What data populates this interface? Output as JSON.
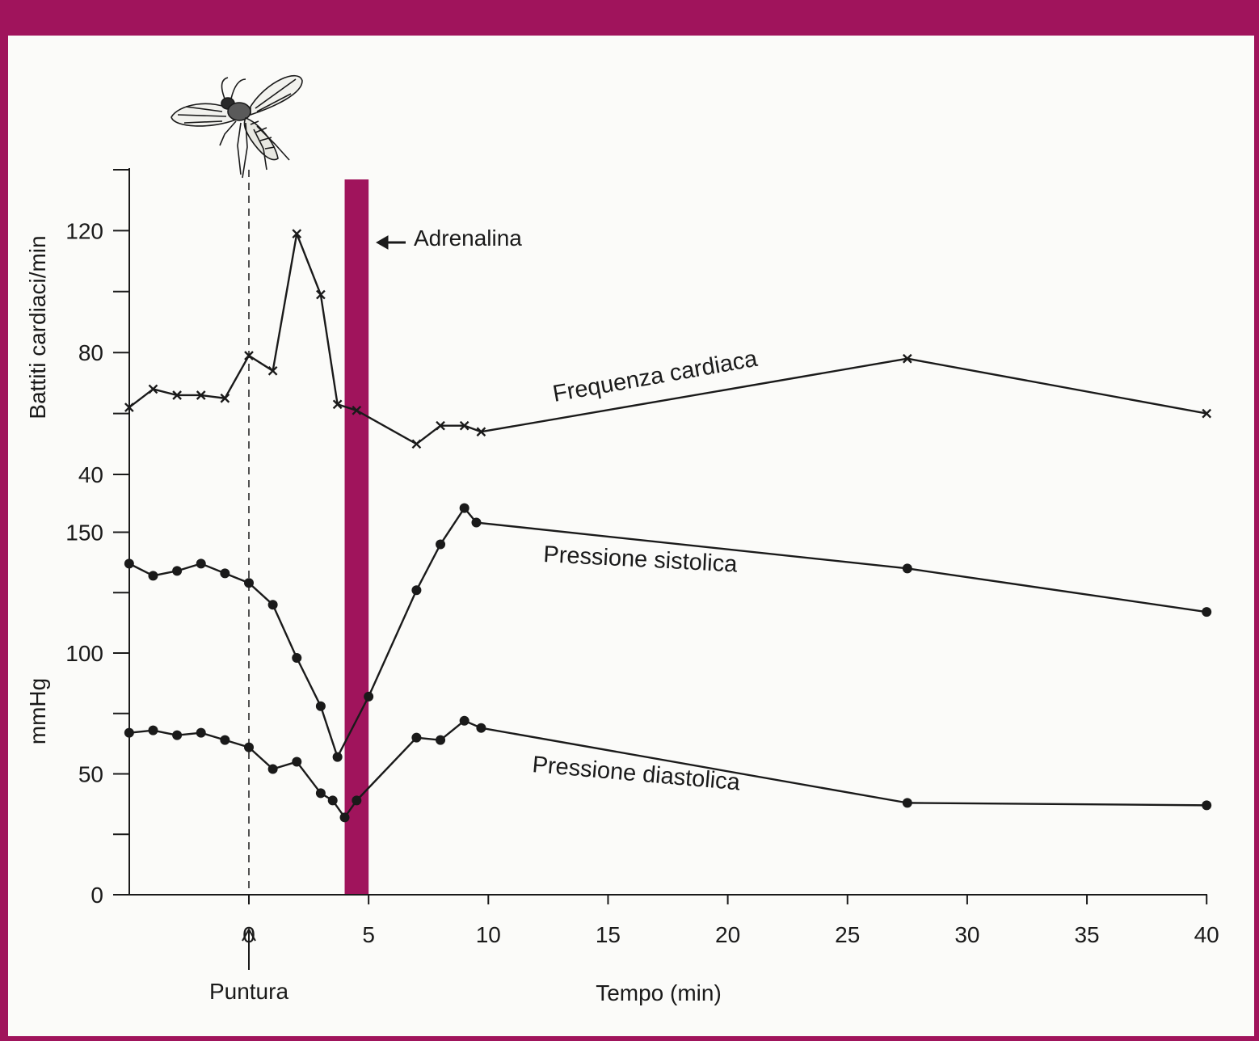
{
  "colors": {
    "accent": "#a0145c",
    "ink": "#1a1a1a",
    "paper": "#fbfbf9"
  },
  "icons": {
    "insect": "wasp-icon"
  },
  "chart_data": [
    {
      "type": "line",
      "ylabel": "Battiti cardiaci/min",
      "yticks": [
        40,
        80,
        120
      ],
      "ylim": [
        40,
        140
      ],
      "series": [
        {
          "name": "Frequenza cardiaca",
          "marker": "x",
          "x": [
            -5,
            -4,
            -3,
            -2,
            -1,
            0,
            1,
            2,
            3,
            3.7,
            4.5,
            7,
            8,
            9,
            9.7,
            27.5,
            40
          ],
          "y": [
            62,
            68,
            66,
            66,
            65,
            79,
            74,
            119,
            99,
            63,
            61,
            50,
            56,
            56,
            54,
            78,
            60
          ]
        }
      ]
    },
    {
      "type": "line",
      "ylabel": "mmHg",
      "xlabel": "Tempo (min)",
      "xticks": [
        0,
        5,
        10,
        15,
        20,
        25,
        30,
        35,
        40
      ],
      "yticks": [
        0,
        50,
        100,
        150
      ],
      "ylim": [
        0,
        160
      ],
      "xlim": [
        -5,
        40
      ],
      "series": [
        {
          "name": "Pressione sistolica",
          "marker": "dot",
          "x": [
            -5,
            -4,
            -3,
            -2,
            -1,
            0,
            1,
            2,
            3,
            3.7,
            5,
            7,
            8,
            9,
            9.5,
            27.5,
            40
          ],
          "y": [
            137,
            132,
            134,
            137,
            133,
            129,
            120,
            98,
            78,
            57,
            82,
            126,
            145,
            160,
            154,
            135,
            117
          ]
        },
        {
          "name": "Pressione diastolica",
          "marker": "dot",
          "x": [
            -5,
            -4,
            -3,
            -2,
            -1,
            0,
            1,
            2,
            3,
            3.5,
            4,
            4.5,
            7,
            8,
            9,
            9.7,
            27.5,
            40
          ],
          "y": [
            67,
            68,
            66,
            67,
            64,
            61,
            52,
            55,
            42,
            39,
            32,
            39,
            65,
            64,
            72,
            69,
            38,
            37
          ]
        }
      ],
      "annotations": [
        {
          "label": "Puntura",
          "x": 0
        },
        {
          "label": "Adrenalina",
          "x_start": 4,
          "x_end": 5
        }
      ]
    }
  ]
}
